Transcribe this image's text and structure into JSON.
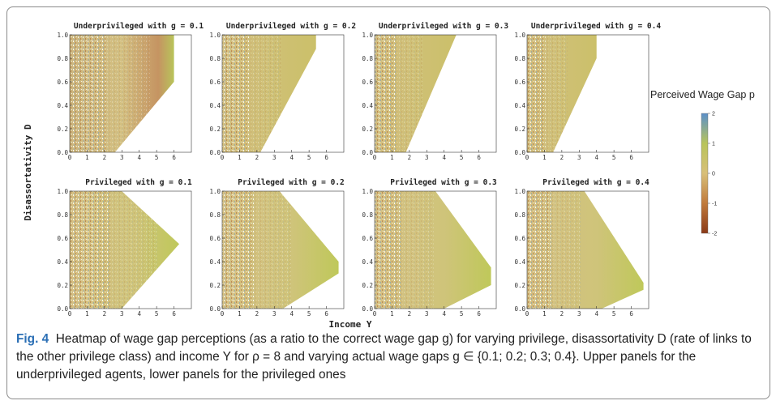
{
  "figure": {
    "ylabel": "Disassortativity D",
    "xlabel": "Income Y",
    "x_ticks": [
      "0",
      "1",
      "2",
      "3",
      "4",
      "5",
      "6"
    ],
    "y_ticks": [
      "0.0",
      "0.2",
      "0.4",
      "0.6",
      "0.8",
      "1.0"
    ],
    "panels": [
      {
        "title": "Underprivileged with g = 0.1",
        "row": "top",
        "g": 0.1
      },
      {
        "title": "Underprivileged with g = 0.2",
        "row": "top",
        "g": 0.2
      },
      {
        "title": "Underprivileged with g = 0.3",
        "row": "top",
        "g": 0.3
      },
      {
        "title": "Underprivileged with g = 0.4",
        "row": "top",
        "g": 0.4
      },
      {
        "title": "Privileged with g = 0.1",
        "row": "bottom",
        "g": 0.1
      },
      {
        "title": "Privileged with g = 0.2",
        "row": "bottom",
        "g": 0.2
      },
      {
        "title": "Privileged with g = 0.3",
        "row": "bottom",
        "g": 0.3
      },
      {
        "title": "Privileged with g = 0.4",
        "row": "bottom",
        "g": 0.4
      }
    ],
    "colorbar": {
      "title": "Perceived Wage Gap p",
      "ticks": [
        "2",
        "1",
        "0",
        "-1",
        "-2"
      ],
      "colors": [
        "#5b8fc9",
        "#b8c45a",
        "#d8bf78",
        "#c07a3c",
        "#8a3a18"
      ]
    }
  },
  "chart_data": {
    "type": "heatmap",
    "xlabel": "Income Y",
    "ylabel": "Disassortativity D",
    "xlim": [
      0,
      7
    ],
    "ylim": [
      0.0,
      1.0
    ],
    "colorbar_range": [
      -2,
      2
    ],
    "domains": [
      {
        "panel": "Underprivileged with g = 0.1",
        "polygon": [
          [
            0,
            0
          ],
          [
            2.6,
            0
          ],
          [
            6.0,
            0.6
          ],
          [
            6.0,
            1.0
          ],
          [
            0,
            1.0
          ]
        ]
      },
      {
        "panel": "Underprivileged with g = 0.2",
        "polygon": [
          [
            0,
            0
          ],
          [
            2.2,
            0
          ],
          [
            5.4,
            0.88
          ],
          [
            5.4,
            1.0
          ],
          [
            0,
            1.0
          ]
        ]
      },
      {
        "panel": "Underprivileged with g = 0.3",
        "polygon": [
          [
            0,
            0
          ],
          [
            1.8,
            0
          ],
          [
            4.7,
            1.0
          ],
          [
            0,
            1.0
          ]
        ]
      },
      {
        "panel": "Underprivileged with g = 0.4",
        "polygon": [
          [
            0,
            0
          ],
          [
            1.5,
            0
          ],
          [
            4.0,
            0.8
          ],
          [
            4.0,
            1.0
          ],
          [
            0,
            1.0
          ]
        ]
      },
      {
        "panel": "Privileged with g = 0.1",
        "polygon": [
          [
            0,
            0
          ],
          [
            3.0,
            0
          ],
          [
            6.3,
            0.55
          ],
          [
            3.0,
            1.0
          ],
          [
            0,
            1.0
          ]
        ]
      },
      {
        "panel": "Privileged with g = 0.2",
        "polygon": [
          [
            0,
            0
          ],
          [
            3.5,
            0
          ],
          [
            6.7,
            0.3
          ],
          [
            6.7,
            0.4
          ],
          [
            3.3,
            1.0
          ],
          [
            0,
            1.0
          ]
        ]
      },
      {
        "panel": "Privileged with g = 0.3",
        "polygon": [
          [
            0,
            0
          ],
          [
            4.0,
            0
          ],
          [
            6.7,
            0.2
          ],
          [
            6.7,
            0.35
          ],
          [
            3.5,
            1.0
          ],
          [
            0,
            1.0
          ]
        ]
      },
      {
        "panel": "Privileged with g = 0.4",
        "polygon": [
          [
            0,
            0
          ],
          [
            4.3,
            0
          ],
          [
            6.7,
            0.16
          ],
          [
            6.7,
            0.22
          ],
          [
            3.3,
            1.0
          ],
          [
            0,
            1.0
          ]
        ]
      }
    ]
  },
  "caption": {
    "label": "Fig. 4",
    "text": "Heatmap of wage gap perceptions (as a ratio to the correct wage gap g) for varying privilege, disassortativity D (rate of links to the other privilege class) and income Y for ρ = 8 and varying actual wage gaps g ∈ {0.1; 0.2; 0.3; 0.4}. Upper panels for the underprivileged agents, lower panels for the privileged ones"
  }
}
